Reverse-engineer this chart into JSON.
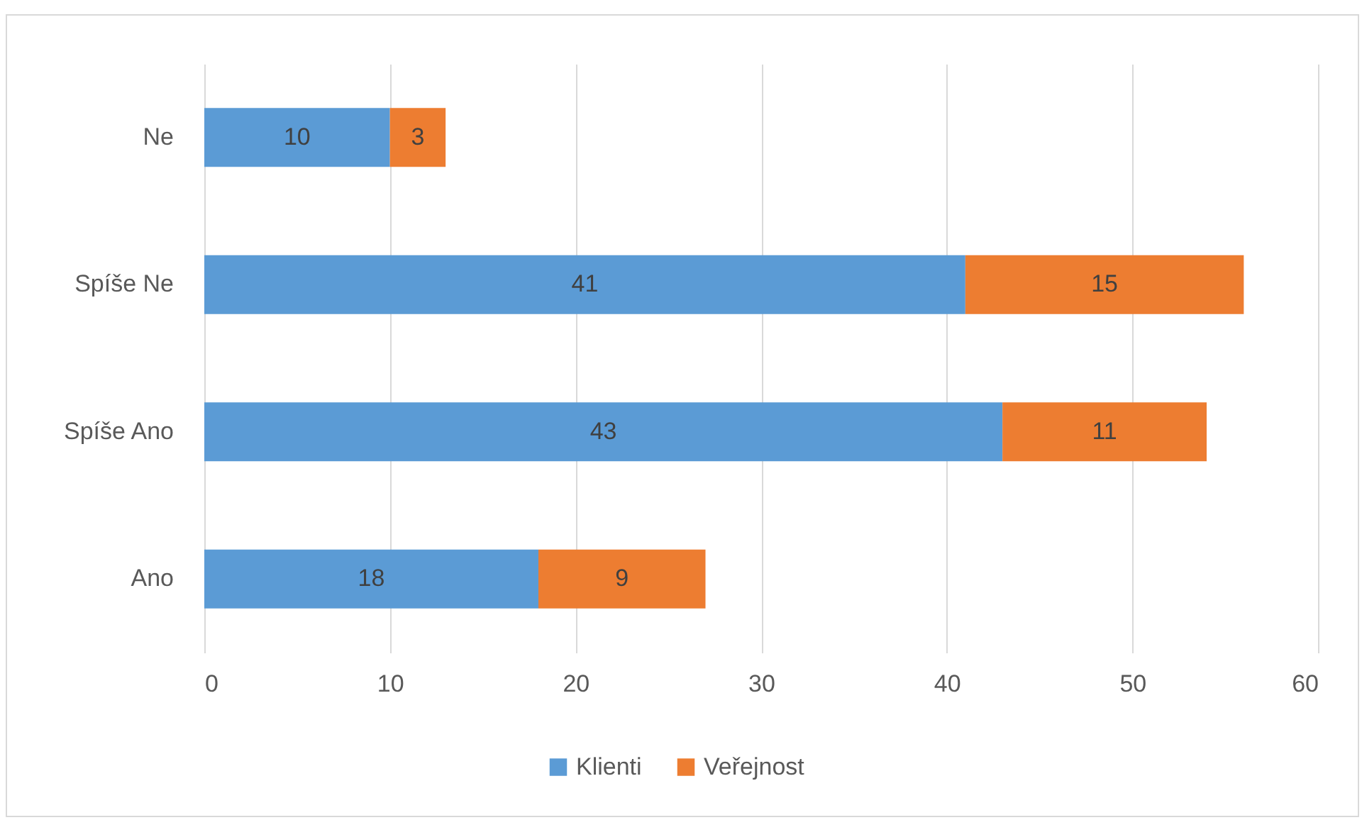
{
  "chart_data": {
    "type": "bar",
    "orientation": "horizontal",
    "stacked": true,
    "categories": [
      "Ne",
      "Spíše Ne",
      "Spíše Ano",
      "Ano"
    ],
    "series": [
      {
        "name": "Klienti",
        "color": "#5b9bd5",
        "values": [
          10,
          41,
          43,
          18
        ]
      },
      {
        "name": "Veřejnost",
        "color": "#ed7d31",
        "values": [
          3,
          15,
          11,
          9
        ]
      }
    ],
    "xlim": [
      0,
      60
    ],
    "xticks": [
      0,
      10,
      20,
      30,
      40,
      50,
      60
    ],
    "grid": "x",
    "legend": "bottom",
    "data_labels": true
  }
}
